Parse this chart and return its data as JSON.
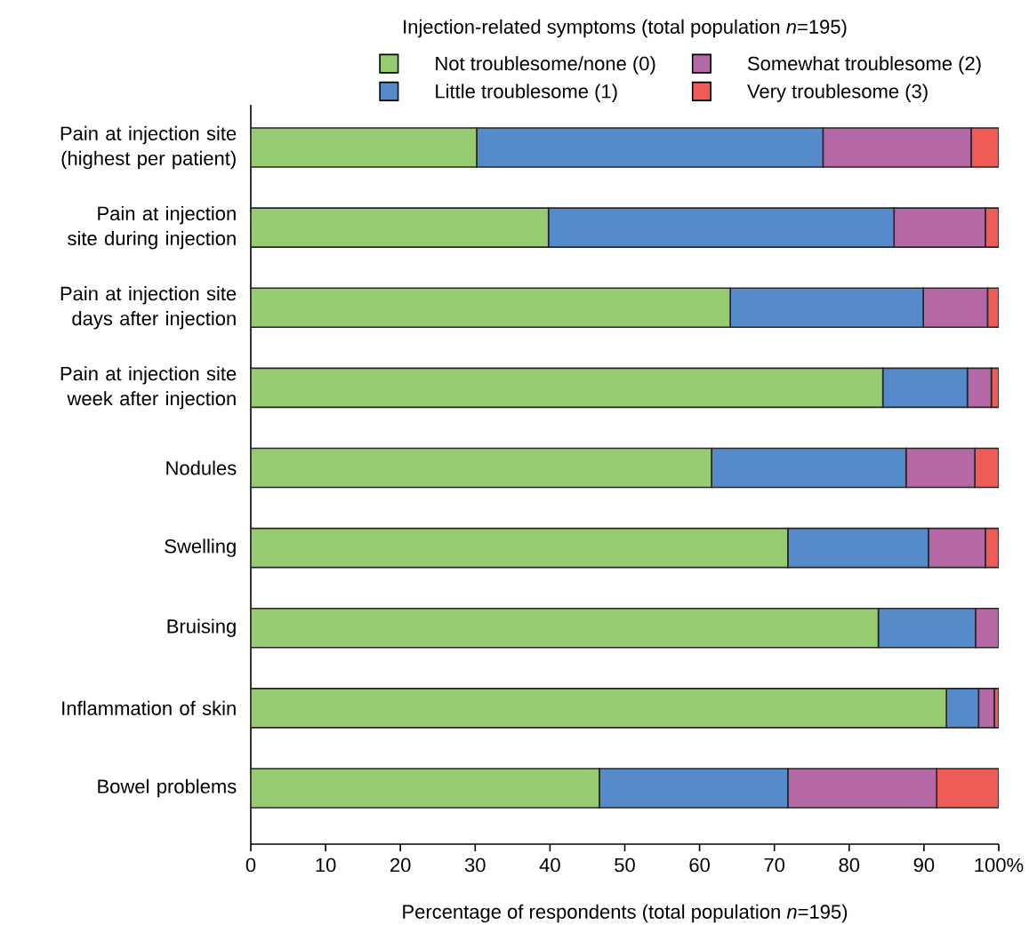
{
  "chart_data": {
    "type": "bar",
    "orientation": "horizontal",
    "stacked": true,
    "title": "Injection-related symptoms (total population *n*=195)",
    "xlabel": "Percentage of respondents (total population *n*=195)",
    "categories": [
      "Pain at injection site (highest per patient)",
      "Pain at injection site during injection",
      "Pain at injection site days after injection",
      "Pain at injection site week after injection",
      "Nodules",
      "Swelling",
      "Bruising",
      "Inflammation of skin",
      "Bowel problems"
    ],
    "series": [
      {
        "name": "Not troublesome/none (0)",
        "color": "#97cb72",
        "values": [
          30.2,
          39.8,
          64.1,
          84.5,
          61.6,
          71.8,
          83.9,
          93.0,
          46.6
        ]
      },
      {
        "name": "Little troublesome (1)",
        "color": "#568bcb",
        "values": [
          46.3,
          46.2,
          25.8,
          11.3,
          26.0,
          18.8,
          13.0,
          4.3,
          25.2
        ]
      },
      {
        "name": "Somewhat troublesome (2)",
        "color": "#b468a6",
        "values": [
          19.8,
          12.2,
          8.6,
          3.2,
          9.2,
          7.6,
          3.1,
          2.1,
          19.9
        ]
      },
      {
        "name": "Very troublesome (3)",
        "color": "#ef5b57",
        "values": [
          3.7,
          1.8,
          1.5,
          1.0,
          3.2,
          1.8,
          0,
          0.6,
          8.3
        ]
      }
    ],
    "xlim": [
      0,
      100
    ],
    "xticks": [
      0,
      10,
      20,
      30,
      40,
      50,
      60,
      70,
      80,
      90,
      {
        "value": 100,
        "label": "100%"
      }
    ],
    "legend": "top"
  }
}
